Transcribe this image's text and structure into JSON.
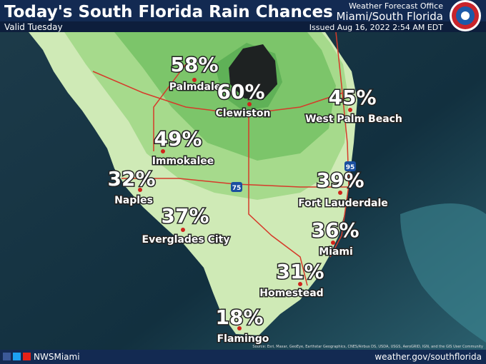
{
  "header": {
    "title": "Today's South Florida Rain Chances",
    "valid": "Valid Tuesday",
    "office": "Weather Forecast Office",
    "region": "Miami/South Florida",
    "issued": "Issued Aug 16, 2022 2:54 AM EDT"
  },
  "cities": [
    {
      "name": "Palmdale",
      "chance": "58%"
    },
    {
      "name": "Clewiston",
      "chance": "60%"
    },
    {
      "name": "West Palm Beach",
      "chance": "45%"
    },
    {
      "name": "Immokalee",
      "chance": "49%"
    },
    {
      "name": "Naples",
      "chance": "32%"
    },
    {
      "name": "Fort Lauderdale",
      "chance": "39%"
    },
    {
      "name": "Everglades City",
      "chance": "37%"
    },
    {
      "name": "Miami",
      "chance": "36%"
    },
    {
      "name": "Homestead",
      "chance": "31%"
    },
    {
      "name": "Flamingo",
      "chance": "18%"
    }
  ],
  "roads": [
    "95",
    "75"
  ],
  "footer": {
    "handle": "NWSMiami",
    "website": "weather.gov/southflorida",
    "attribution": "Source: Esri, Maxar, GeoEye, Earthstar Geographics, CNES/Airbus DS, USDA, USGS, AeroGRID, IGN, and the GIS User Community"
  }
}
